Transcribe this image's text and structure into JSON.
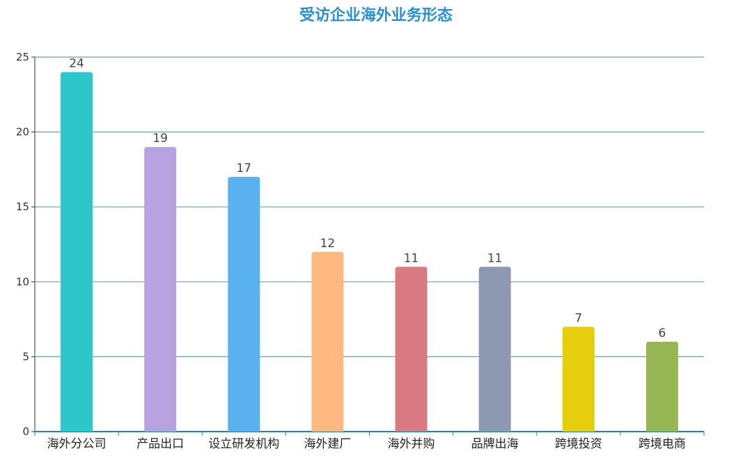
{
  "chart_data": {
    "type": "bar",
    "title": "受访企业海外业务形态",
    "categories": [
      "海外分公司",
      "产品出口",
      "设立研发机构",
      "海外建厂",
      "海外并购",
      "品牌出海",
      "跨境投资",
      "跨境电商"
    ],
    "values": [
      24,
      19,
      17,
      12,
      11,
      11,
      7,
      6
    ],
    "colors": [
      "#2ec7c9",
      "#b6a2de",
      "#5ab1ef",
      "#ffb980",
      "#d87a80",
      "#8d98b3",
      "#e5cf0d",
      "#97b552"
    ],
    "ylim": [
      0,
      25
    ],
    "yticks": [
      0,
      5,
      10,
      15,
      20,
      25
    ],
    "grid": true,
    "xlabel": "",
    "ylabel": ""
  }
}
